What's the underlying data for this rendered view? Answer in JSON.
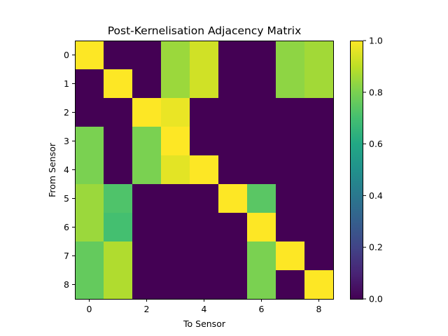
{
  "chart_data": {
    "type": "heatmap",
    "title": "Post-Kernelisation Adjacency Matrix",
    "xlabel": "To Sensor",
    "ylabel": "From Sensor",
    "rows": [
      0,
      1,
      2,
      3,
      4,
      5,
      6,
      7,
      8
    ],
    "cols": [
      0,
      1,
      2,
      3,
      4,
      5,
      6,
      7,
      8
    ],
    "values": [
      [
        1.0,
        0.0,
        0.0,
        0.85,
        0.93,
        0.0,
        0.0,
        0.83,
        0.86
      ],
      [
        0.0,
        1.0,
        0.0,
        0.85,
        0.93,
        0.0,
        0.0,
        0.83,
        0.86
      ],
      [
        0.0,
        0.0,
        1.0,
        0.97,
        0.0,
        0.0,
        0.0,
        0.0,
        0.0
      ],
      [
        0.8,
        0.0,
        0.8,
        1.0,
        0.0,
        0.0,
        0.0,
        0.0,
        0.0
      ],
      [
        0.8,
        0.0,
        0.8,
        0.96,
        1.0,
        0.0,
        0.0,
        0.0,
        0.0
      ],
      [
        0.85,
        0.72,
        0.0,
        0.0,
        0.0,
        1.0,
        0.74,
        0.0,
        0.0
      ],
      [
        0.85,
        0.7,
        0.0,
        0.0,
        0.0,
        0.0,
        1.0,
        0.0,
        0.0
      ],
      [
        0.76,
        0.88,
        0.0,
        0.0,
        0.0,
        0.0,
        0.8,
        1.0,
        0.0
      ],
      [
        0.76,
        0.88,
        0.0,
        0.0,
        0.0,
        0.0,
        0.8,
        0.0,
        1.0
      ]
    ],
    "x_ticks": [
      "0",
      "2",
      "4",
      "6",
      "8"
    ],
    "y_ticks": [
      "0",
      "1",
      "2",
      "3",
      "4",
      "5",
      "6",
      "7",
      "8"
    ],
    "vmin": 0.0,
    "vmax": 1.0,
    "colorbar_ticks": [
      "0.0",
      "0.2",
      "0.4",
      "0.6",
      "0.8",
      "1.0"
    ],
    "colormap": "viridis"
  }
}
